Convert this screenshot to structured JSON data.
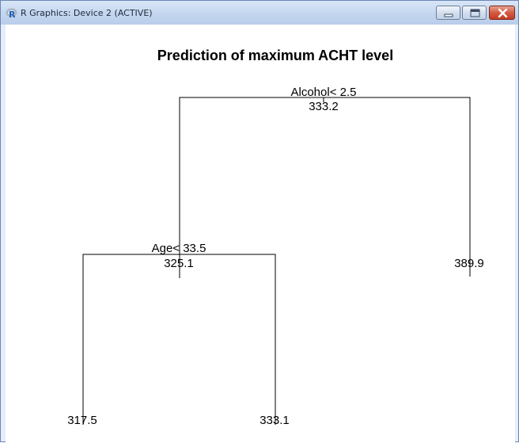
{
  "window": {
    "title": "R Graphics: Device 2 (ACTIVE)",
    "icon": "r-logo-icon",
    "controls": [
      "minimize-icon",
      "maximize-icon",
      "close-icon"
    ]
  },
  "plot": {
    "title": "Prediction of maximum ACHT level",
    "root": {
      "split": "Alcohol< 2.5",
      "value": "333.2"
    },
    "left_node": {
      "split": "Age< 33.5",
      "value": "325.1"
    },
    "leaves": [
      {
        "value": "317.5"
      },
      {
        "value": "333.1"
      },
      {
        "value": "389.9"
      }
    ]
  }
}
